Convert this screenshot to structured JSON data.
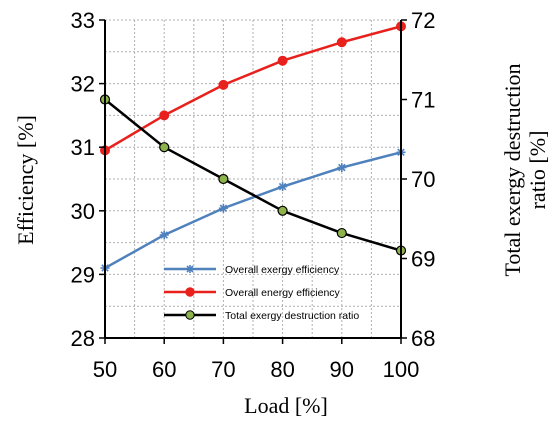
{
  "chart_data": {
    "type": "line",
    "x": [
      50,
      60,
      70,
      80,
      90,
      100
    ],
    "xlim": [
      50,
      100
    ],
    "xticks": [
      "50",
      "60",
      "70",
      "80",
      "90",
      "100"
    ],
    "xlabel": "Load [%]",
    "ylabel": "Efficiency [%]",
    "ylim": [
      28,
      33
    ],
    "yticks": [
      "28",
      "29",
      "30",
      "31",
      "32",
      "33"
    ],
    "y2label_line1": "Total exergy destruction",
    "y2label_line2": "ratio [%]",
    "y2lim": [
      68,
      72
    ],
    "y2ticks": [
      "68",
      "69",
      "70",
      "71",
      "72"
    ],
    "grid": true,
    "legend_position": "bottom-center",
    "series": [
      {
        "name": "Overall exergy efficiency",
        "axis": "left",
        "marker": "star",
        "color": "#4f81bd",
        "values": [
          29.1,
          29.62,
          30.04,
          30.38,
          30.68,
          30.92
        ]
      },
      {
        "name": "Overall energy efficiency",
        "axis": "left",
        "marker": "circle",
        "color": "#e8211d",
        "values": [
          30.95,
          31.5,
          31.98,
          32.36,
          32.65,
          32.9
        ]
      },
      {
        "name": "Total exergy destruction ratio",
        "axis": "right",
        "marker": "circle",
        "color": "#000000",
        "marker_fill": "#8db34a",
        "values": [
          71.0,
          70.4,
          70.0,
          69.6,
          69.32,
          69.1
        ]
      }
    ]
  }
}
